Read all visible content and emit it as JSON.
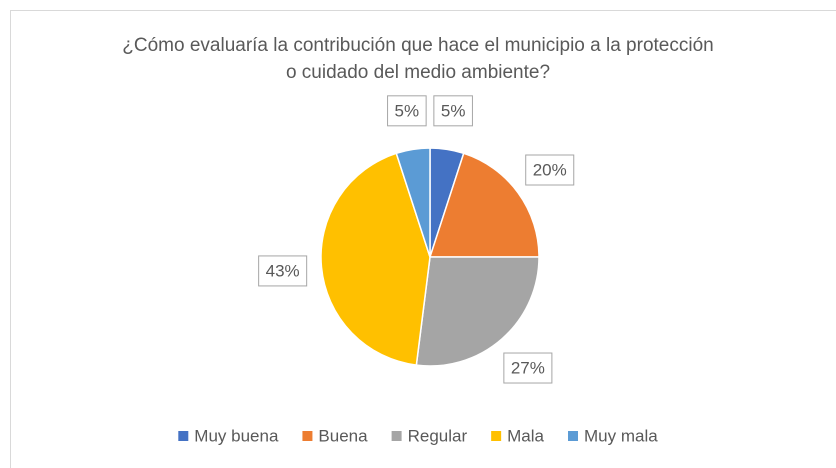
{
  "chart_data": {
    "type": "pie",
    "title": "¿Cómo evaluaría la contribución que hace el municipio a la protección o cuidado del medio ambiente?",
    "categories": [
      "Muy buena",
      "Buena",
      "Regular",
      "Mala",
      "Muy mala"
    ],
    "values": [
      5,
      20,
      27,
      43,
      5
    ],
    "value_labels": [
      "5%",
      "20%",
      "27%",
      "43%",
      "5%"
    ],
    "colors": [
      "#4472c4",
      "#ed7d31",
      "#a5a5a5",
      "#ffc000",
      "#5b9bd5"
    ],
    "legend": "bottom"
  }
}
